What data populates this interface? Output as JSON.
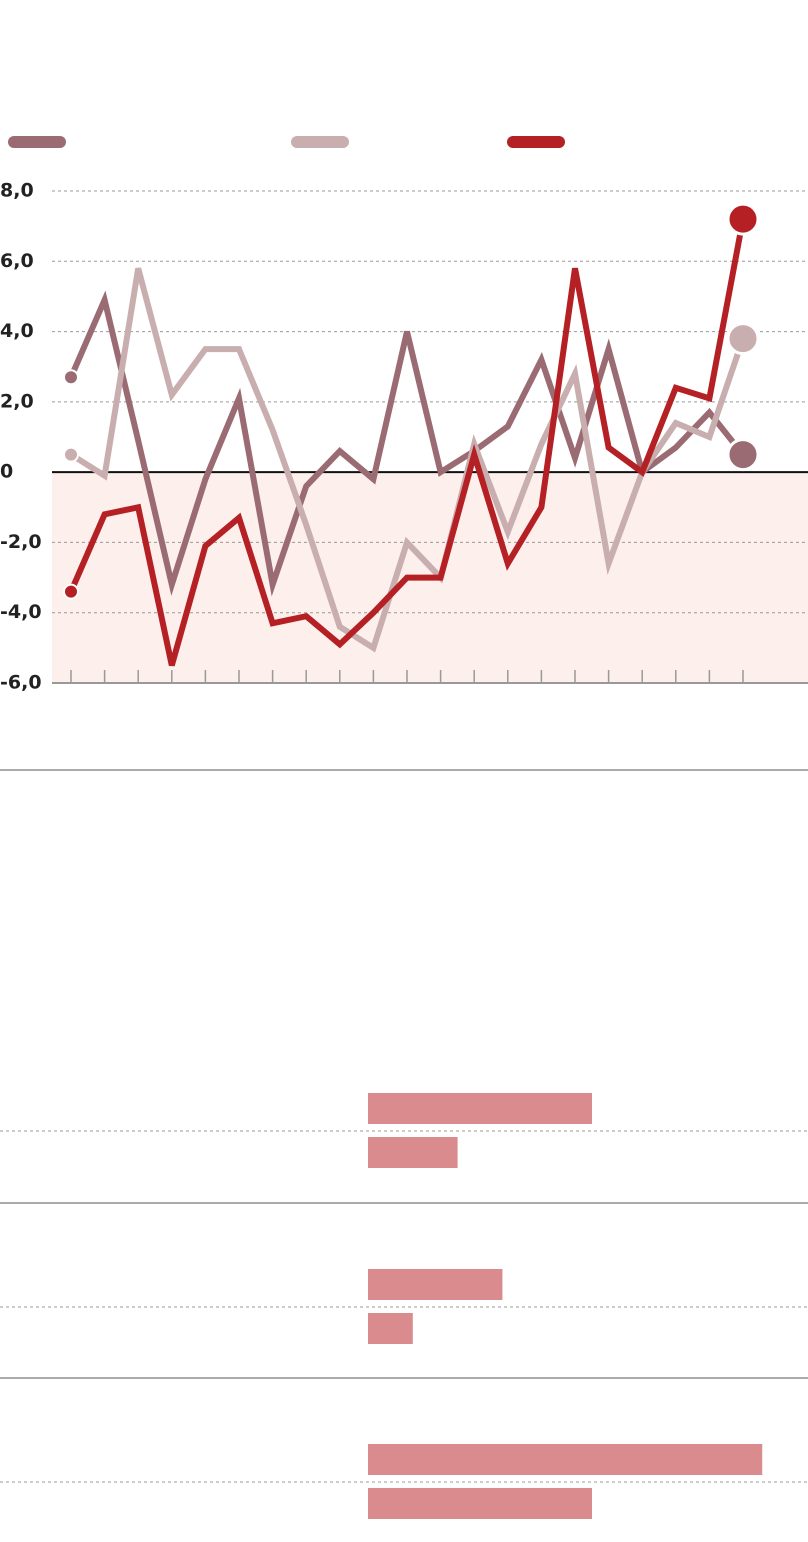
{
  "chart_data": [
    {
      "type": "line",
      "categories": [
        null,
        null,
        null,
        null,
        null,
        null,
        null,
        null,
        null,
        null,
        null,
        null,
        null,
        null,
        null,
        null,
        null,
        null,
        null,
        null,
        null
      ],
      "series": [
        {
          "color": "#9b6b73",
          "values": [
            2.7,
            4.9,
            0.9,
            -3.2,
            -0.2,
            2.1,
            -3.2,
            -0.4,
            0.6,
            -0.2,
            4.0,
            0.0,
            0.6,
            1.3,
            3.2,
            0.4,
            3.5,
            0.0,
            0.7,
            1.7,
            0.5
          ]
        },
        {
          "color": "#c9aeb0",
          "values": [
            0.5,
            -0.1,
            5.8,
            2.2,
            3.5,
            3.5,
            1.2,
            -1.5,
            -4.4,
            -5.0,
            -2.0,
            -3.0,
            0.8,
            -1.7,
            0.8,
            2.8,
            -2.6,
            0.0,
            1.4,
            1.0,
            3.8
          ]
        },
        {
          "color": "#b52025",
          "values": [
            -3.4,
            -1.2,
            -1.0,
            -5.5,
            -2.1,
            -1.3,
            -4.3,
            -4.1,
            -4.9,
            -4.0,
            -3.0,
            -3.0,
            0.5,
            -2.6,
            -1.0,
            5.8,
            0.7,
            0.0,
            2.4,
            2.1,
            7.2
          ]
        }
      ],
      "ylim": [
        -6,
        8
      ],
      "yticks": [
        {
          "value": -6,
          "label": "-6,0"
        },
        {
          "value": -4,
          "label": "-4,0"
        },
        {
          "value": -2,
          "label": "-2,0"
        },
        0,
        {
          "value": 2,
          "label": "2,0"
        },
        {
          "value": 4,
          "label": "4,0"
        },
        {
          "value": 6,
          "label": "6,0"
        },
        {
          "value": 8,
          "label": "8,0"
        }
      ],
      "grid": true,
      "negative_fill": "#fcefec"
    },
    {
      "type": "hbar",
      "categories": [
        null,
        null,
        null
      ],
      "series": [
        {
          "color": "#d98b8e",
          "values": [
            5.0,
            3.0,
            8.8
          ]
        },
        {
          "color": "#d98b8e",
          "values": [
            2.0,
            1.0,
            5.0
          ]
        }
      ],
      "xlim": [
        0,
        10
      ]
    }
  ]
}
